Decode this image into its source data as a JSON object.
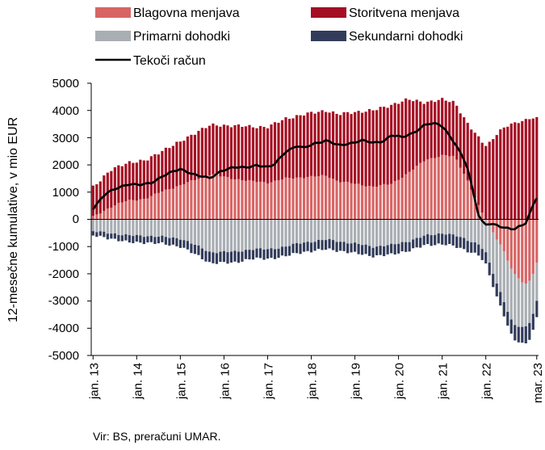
{
  "chart_data": {
    "type": "bar",
    "stacked": true,
    "source": "Vir: BS, preračuni UMAR.",
    "ylabel": "12-mesečne kumulative, v mio EUR",
    "ylim": [
      -5000,
      5000
    ],
    "yticks": [
      5000,
      4000,
      3000,
      2000,
      1000,
      0,
      -1000,
      -2000,
      -3000,
      -4000,
      -5000
    ],
    "xticks": [
      "jan. 13",
      "jan. 14",
      "jan. 15",
      "jan. 16",
      "jan. 17",
      "jan. 18",
      "jan. 19",
      "jan. 20",
      "jan. 21",
      "jan. 22",
      "mar. 23"
    ],
    "period": {
      "start": "jan. 13",
      "end": "mar. 23",
      "frequency": "monthly"
    },
    "legend_position": "top",
    "series": [
      {
        "name": "Blagovna menjava",
        "color": "#d86565",
        "kind": "bar"
      },
      {
        "name": "Storitvena menjava",
        "color": "#a50f23",
        "kind": "bar"
      },
      {
        "name": "Primarni dohodki",
        "color": "#a9aeb3",
        "kind": "bar"
      },
      {
        "name": "Sekundarni dohodki",
        "color": "#323c5a",
        "kind": "bar"
      },
      {
        "name": "Tekoči račun",
        "color": "#000000",
        "kind": "line"
      }
    ],
    "keypoints": {
      "Blagovna menjava": [
        [
          0,
          100
        ],
        [
          6,
          450
        ],
        [
          12,
          700
        ],
        [
          18,
          750
        ],
        [
          24,
          1050
        ],
        [
          30,
          1250
        ],
        [
          36,
          1500
        ],
        [
          40,
          1650
        ],
        [
          48,
          1500
        ],
        [
          54,
          1400
        ],
        [
          60,
          1350
        ],
        [
          66,
          1500
        ],
        [
          72,
          1550
        ],
        [
          80,
          1600
        ],
        [
          84,
          1400
        ],
        [
          90,
          1300
        ],
        [
          96,
          1200
        ],
        [
          102,
          1300
        ],
        [
          108,
          1700
        ],
        [
          114,
          2200
        ],
        [
          120,
          2350
        ],
        [
          124,
          2300
        ],
        [
          128,
          1500
        ],
        [
          132,
          500
        ],
        [
          136,
          -300
        ],
        [
          140,
          -1000
        ],
        [
          144,
          -2000
        ],
        [
          148,
          -2400
        ],
        [
          150,
          -2200
        ],
        [
          152,
          -1600
        ]
      ],
      "Storitvena menjava": [
        [
          0,
          1100
        ],
        [
          6,
          1350
        ],
        [
          12,
          1400
        ],
        [
          18,
          1400
        ],
        [
          24,
          1500
        ],
        [
          30,
          1600
        ],
        [
          36,
          1750
        ],
        [
          40,
          1800
        ],
        [
          48,
          1950
        ],
        [
          54,
          2000
        ],
        [
          60,
          2050
        ],
        [
          66,
          2200
        ],
        [
          72,
          2300
        ],
        [
          80,
          2400
        ],
        [
          84,
          2450
        ],
        [
          90,
          2650
        ],
        [
          96,
          2800
        ],
        [
          102,
          2900
        ],
        [
          108,
          2700
        ],
        [
          114,
          2100
        ],
        [
          120,
          2050
        ],
        [
          124,
          2000
        ],
        [
          128,
          2050
        ],
        [
          132,
          2500
        ],
        [
          136,
          2850
        ],
        [
          140,
          3300
        ],
        [
          144,
          3550
        ],
        [
          148,
          3650
        ],
        [
          150,
          3700
        ],
        [
          152,
          3700
        ]
      ],
      "Primarni dohodki": [
        [
          0,
          -450
        ],
        [
          6,
          -500
        ],
        [
          12,
          -600
        ],
        [
          18,
          -600
        ],
        [
          24,
          -650
        ],
        [
          30,
          -700
        ],
        [
          36,
          -1000
        ],
        [
          40,
          -1200
        ],
        [
          48,
          -1200
        ],
        [
          54,
          -1100
        ],
        [
          60,
          -1100
        ],
        [
          66,
          -1000
        ],
        [
          72,
          -850
        ],
        [
          80,
          -750
        ],
        [
          84,
          -800
        ],
        [
          90,
          -900
        ],
        [
          96,
          -1000
        ],
        [
          102,
          -950
        ],
        [
          108,
          -800
        ],
        [
          114,
          -600
        ],
        [
          120,
          -500
        ],
        [
          124,
          -600
        ],
        [
          128,
          -750
        ],
        [
          132,
          -900
        ],
        [
          136,
          -1400
        ],
        [
          140,
          -1800
        ],
        [
          144,
          -1900
        ],
        [
          148,
          -1600
        ],
        [
          150,
          -1500
        ],
        [
          152,
          -1400
        ]
      ],
      "Sekundarni dohodki": [
        [
          0,
          -150
        ],
        [
          6,
          -200
        ],
        [
          12,
          -250
        ],
        [
          18,
          -250
        ],
        [
          24,
          -250
        ],
        [
          30,
          -300
        ],
        [
          36,
          -350
        ],
        [
          40,
          -400
        ],
        [
          48,
          -400
        ],
        [
          54,
          -350
        ],
        [
          60,
          -350
        ],
        [
          66,
          -350
        ],
        [
          72,
          -350
        ],
        [
          80,
          -350
        ],
        [
          84,
          -350
        ],
        [
          90,
          -350
        ],
        [
          96,
          -350
        ],
        [
          102,
          -350
        ],
        [
          108,
          -350
        ],
        [
          114,
          -350
        ],
        [
          120,
          -400
        ],
        [
          124,
          -400
        ],
        [
          128,
          -400
        ],
        [
          132,
          -400
        ],
        [
          136,
          -450
        ],
        [
          140,
          -500
        ],
        [
          144,
          -550
        ],
        [
          148,
          -600
        ],
        [
          150,
          -600
        ],
        [
          152,
          -600
        ]
      ],
      "Tekoči račun": [
        [
          0,
          400
        ],
        [
          4,
          900
        ],
        [
          8,
          1150
        ],
        [
          12,
          1300
        ],
        [
          16,
          1250
        ],
        [
          20,
          1350
        ],
        [
          24,
          1600
        ],
        [
          30,
          1850
        ],
        [
          36,
          1600
        ],
        [
          40,
          1500
        ],
        [
          44,
          1800
        ],
        [
          48,
          1900
        ],
        [
          52,
          1900
        ],
        [
          56,
          2000
        ],
        [
          60,
          1900
        ],
        [
          62,
          2000
        ],
        [
          66,
          2500
        ],
        [
          70,
          2700
        ],
        [
          72,
          2600
        ],
        [
          76,
          2800
        ],
        [
          80,
          2900
        ],
        [
          82,
          2800
        ],
        [
          84,
          2700
        ],
        [
          88,
          2800
        ],
        [
          92,
          2900
        ],
        [
          96,
          2800
        ],
        [
          100,
          2900
        ],
        [
          102,
          3100
        ],
        [
          106,
          3000
        ],
        [
          110,
          3200
        ],
        [
          114,
          3500
        ],
        [
          118,
          3500
        ],
        [
          120,
          3400
        ],
        [
          124,
          2800
        ],
        [
          128,
          2000
        ],
        [
          132,
          200
        ],
        [
          134,
          -200
        ],
        [
          136,
          -150
        ],
        [
          140,
          -300
        ],
        [
          144,
          -350
        ],
        [
          146,
          -250
        ],
        [
          148,
          -200
        ],
        [
          150,
          300
        ],
        [
          152,
          800
        ]
      ]
    }
  }
}
